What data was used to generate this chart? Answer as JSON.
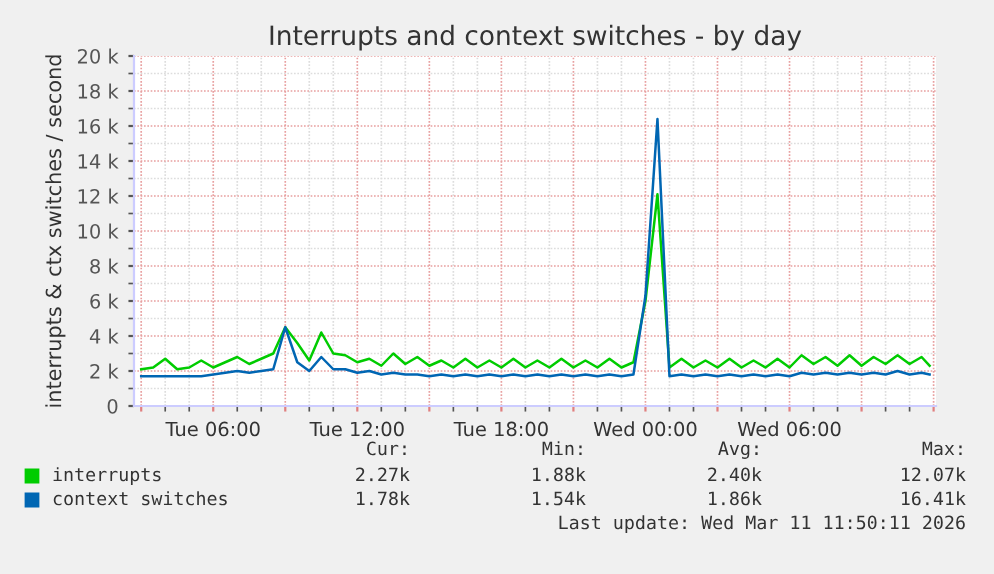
{
  "chart_data": {
    "type": "line",
    "title": "Interrupts and context switches - by day",
    "ylabel": "interrupts & ctx switches / second",
    "x": [
      "2026-03-10T03:00",
      "2026-03-10T03:30",
      "2026-03-10T04:00",
      "2026-03-10T04:30",
      "2026-03-10T05:00",
      "2026-03-10T05:30",
      "2026-03-10T06:00",
      "2026-03-10T06:30",
      "2026-03-10T07:00",
      "2026-03-10T07:30",
      "2026-03-10T08:00",
      "2026-03-10T08:30",
      "2026-03-10T09:00",
      "2026-03-10T09:30",
      "2026-03-10T10:00",
      "2026-03-10T10:30",
      "2026-03-10T11:00",
      "2026-03-10T11:30",
      "2026-03-10T12:00",
      "2026-03-10T12:30",
      "2026-03-10T13:00",
      "2026-03-10T13:30",
      "2026-03-10T14:00",
      "2026-03-10T14:30",
      "2026-03-10T15:00",
      "2026-03-10T15:30",
      "2026-03-10T16:00",
      "2026-03-10T16:30",
      "2026-03-10T17:00",
      "2026-03-10T17:30",
      "2026-03-10T18:00",
      "2026-03-10T18:30",
      "2026-03-10T19:00",
      "2026-03-10T19:30",
      "2026-03-10T20:00",
      "2026-03-10T20:30",
      "2026-03-10T21:00",
      "2026-03-10T21:30",
      "2026-03-10T22:00",
      "2026-03-10T22:30",
      "2026-03-10T23:00",
      "2026-03-10T23:30",
      "2026-03-11T00:00",
      "2026-03-11T00:30",
      "2026-03-11T01:00",
      "2026-03-11T01:30",
      "2026-03-11T02:00",
      "2026-03-11T02:30",
      "2026-03-11T03:00",
      "2026-03-11T03:30",
      "2026-03-11T04:00",
      "2026-03-11T04:30",
      "2026-03-11T05:00",
      "2026-03-11T05:30",
      "2026-03-11T06:00",
      "2026-03-11T06:30",
      "2026-03-11T07:00",
      "2026-03-11T07:30",
      "2026-03-11T08:00",
      "2026-03-11T08:30",
      "2026-03-11T09:00",
      "2026-03-11T09:30",
      "2026-03-11T10:00",
      "2026-03-11T10:30",
      "2026-03-11T11:00",
      "2026-03-11T11:30",
      "2026-03-11T11:50"
    ],
    "series": [
      {
        "name": "interrupts",
        "color": "#00cc00",
        "values": [
          2100,
          2200,
          2700,
          2100,
          2200,
          2600,
          2200,
          2500,
          2800,
          2400,
          2700,
          3000,
          4500,
          3600,
          2600,
          4200,
          3000,
          2900,
          2500,
          2700,
          2300,
          3000,
          2400,
          2800,
          2300,
          2600,
          2200,
          2700,
          2200,
          2600,
          2200,
          2700,
          2200,
          2600,
          2200,
          2700,
          2200,
          2600,
          2200,
          2700,
          2200,
          2500,
          6000,
          12100,
          2200,
          2700,
          2200,
          2600,
          2200,
          2700,
          2200,
          2600,
          2200,
          2700,
          2200,
          2900,
          2400,
          2800,
          2300,
          2900,
          2300,
          2800,
          2400,
          2900,
          2400,
          2800,
          2300
        ]
      },
      {
        "name": "context switches",
        "color": "#0066b3",
        "values": [
          1700,
          1700,
          1700,
          1700,
          1700,
          1700,
          1800,
          1900,
          2000,
          1900,
          2000,
          2100,
          4500,
          2500,
          2000,
          2800,
          2100,
          2100,
          1900,
          2000,
          1800,
          1900,
          1800,
          1800,
          1700,
          1800,
          1700,
          1800,
          1700,
          1800,
          1700,
          1800,
          1700,
          1800,
          1700,
          1800,
          1700,
          1800,
          1700,
          1800,
          1700,
          1800,
          6300,
          16400,
          1700,
          1800,
          1700,
          1800,
          1700,
          1800,
          1700,
          1800,
          1700,
          1800,
          1700,
          1900,
          1800,
          1900,
          1800,
          1900,
          1800,
          1900,
          1800,
          2000,
          1800,
          1900,
          1800
        ]
      }
    ],
    "xlim": [
      "2026-03-10T02:42",
      "2026-03-11T12:06"
    ],
    "xticks": [
      {
        "value": "2026-03-10T03:00",
        "label": null
      },
      {
        "value": "2026-03-10T06:00",
        "label": "Tue 06:00"
      },
      {
        "value": "2026-03-10T09:00",
        "label": null
      },
      {
        "value": "2026-03-10T12:00",
        "label": "Tue 12:00"
      },
      {
        "value": "2026-03-10T15:00",
        "label": null
      },
      {
        "value": "2026-03-10T18:00",
        "label": "Tue 18:00"
      },
      {
        "value": "2026-03-10T21:00",
        "label": null
      },
      {
        "value": "2026-03-11T00:00",
        "label": "Wed 00:00"
      },
      {
        "value": "2026-03-11T03:00",
        "label": null
      },
      {
        "value": "2026-03-11T06:00",
        "label": "Wed 06:00"
      },
      {
        "value": "2026-03-11T09:00",
        "label": null
      },
      {
        "value": "2026-03-11T12:00",
        "label": null
      }
    ],
    "ylim": [
      0,
      20000
    ],
    "yticks": [
      0,
      {
        "value": 2000,
        "label": "2 k"
      },
      {
        "value": 4000,
        "label": "4 k"
      },
      {
        "value": 6000,
        "label": "6 k"
      },
      {
        "value": 8000,
        "label": "8 k"
      },
      {
        "value": 10000,
        "label": "10 k"
      },
      {
        "value": 12000,
        "label": "12 k"
      },
      {
        "value": 14000,
        "label": "14 k"
      },
      {
        "value": 16000,
        "label": "16 k"
      },
      {
        "value": 18000,
        "label": "18 k"
      },
      {
        "value": 20000,
        "label": "20 k"
      }
    ],
    "grid": true,
    "legend": "bottom",
    "annotations": [
      "Cur:",
      "Min:",
      "Avg:",
      "Max:",
      "2.27k",
      "1.88k",
      "2.40k",
      "12.07k",
      "1.78k",
      "1.54k",
      "1.86k",
      "16.41k",
      "Last update: Wed Mar 11 11:50:11 2026"
    ]
  }
}
